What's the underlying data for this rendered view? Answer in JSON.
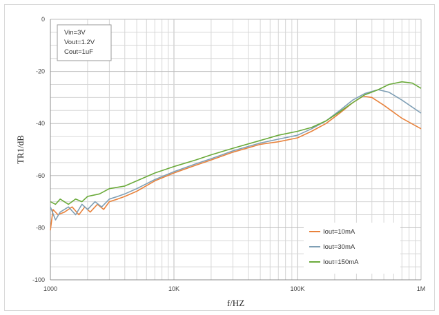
{
  "chart_data": {
    "type": "line",
    "title": "",
    "xlabel": "f/HZ",
    "ylabel": "TR1/dB",
    "xscale": "log",
    "xlim": [
      1000,
      1000000
    ],
    "ylim": [
      -100,
      0
    ],
    "x_tick_values": [
      1000,
      10000,
      100000,
      1000000
    ],
    "x_tick_labels": [
      "1000",
      "10K",
      "100K",
      "1M"
    ],
    "y_tick_values": [
      0,
      -20,
      -40,
      -60,
      -80,
      -100
    ],
    "y_tick_labels": [
      "0",
      "-20",
      "-40",
      "-60",
      "-80",
      "-100"
    ],
    "grid": true,
    "legend_position": "bottom-right",
    "annotation": [
      "Vin=3V",
      "Vout=1.2V",
      "Cout=1uF"
    ],
    "series": [
      {
        "name": "Iout=10mA",
        "color": "#e8823c",
        "points": [
          [
            1000,
            -81
          ],
          [
            1050,
            -73
          ],
          [
            1150,
            -75
          ],
          [
            1300,
            -74
          ],
          [
            1500,
            -72
          ],
          [
            1700,
            -75
          ],
          [
            1900,
            -72
          ],
          [
            2100,
            -74
          ],
          [
            2400,
            -71
          ],
          [
            2700,
            -73
          ],
          [
            3000,
            -70
          ],
          [
            3500,
            -69
          ],
          [
            4000,
            -68
          ],
          [
            5000,
            -66
          ],
          [
            7000,
            -62
          ],
          [
            10000,
            -59
          ],
          [
            15000,
            -56
          ],
          [
            20000,
            -54
          ],
          [
            30000,
            -51
          ],
          [
            50000,
            -48
          ],
          [
            70000,
            -47
          ],
          [
            100000,
            -45.5
          ],
          [
            130000,
            -43
          ],
          [
            170000,
            -40
          ],
          [
            220000,
            -36
          ],
          [
            280000,
            -32
          ],
          [
            340000,
            -29.5
          ],
          [
            400000,
            -30
          ],
          [
            500000,
            -33
          ],
          [
            700000,
            -38
          ],
          [
            1000000,
            -42
          ]
        ]
      },
      {
        "name": "Iout=30mA",
        "color": "#7f9fb5",
        "points": [
          [
            1000,
            -72
          ],
          [
            1100,
            -77
          ],
          [
            1200,
            -74
          ],
          [
            1400,
            -72
          ],
          [
            1600,
            -75
          ],
          [
            1800,
            -71
          ],
          [
            2000,
            -73
          ],
          [
            2300,
            -70
          ],
          [
            2600,
            -72
          ],
          [
            3000,
            -69
          ],
          [
            3500,
            -68
          ],
          [
            4000,
            -67
          ],
          [
            5000,
            -65
          ],
          [
            7000,
            -61.5
          ],
          [
            10000,
            -58.5
          ],
          [
            15000,
            -55.5
          ],
          [
            20000,
            -53.5
          ],
          [
            30000,
            -50.5
          ],
          [
            50000,
            -47.5
          ],
          [
            70000,
            -46
          ],
          [
            100000,
            -44.5
          ],
          [
            130000,
            -42
          ],
          [
            170000,
            -39
          ],
          [
            220000,
            -35
          ],
          [
            280000,
            -31
          ],
          [
            350000,
            -28.5
          ],
          [
            450000,
            -27
          ],
          [
            550000,
            -28
          ],
          [
            700000,
            -31
          ],
          [
            1000000,
            -36
          ]
        ]
      },
      {
        "name": "Iout=150mA",
        "color": "#6aaa3a",
        "points": [
          [
            1000,
            -70
          ],
          [
            1100,
            -71
          ],
          [
            1200,
            -69
          ],
          [
            1400,
            -71
          ],
          [
            1600,
            -69
          ],
          [
            1800,
            -70
          ],
          [
            2000,
            -68
          ],
          [
            2500,
            -67
          ],
          [
            3000,
            -65
          ],
          [
            4000,
            -64
          ],
          [
            5000,
            -62
          ],
          [
            7000,
            -59
          ],
          [
            10000,
            -56.5
          ],
          [
            15000,
            -54
          ],
          [
            20000,
            -52
          ],
          [
            30000,
            -49.5
          ],
          [
            50000,
            -46.5
          ],
          [
            70000,
            -44.5
          ],
          [
            100000,
            -43
          ],
          [
            130000,
            -41.5
          ],
          [
            170000,
            -39
          ],
          [
            220000,
            -35.5
          ],
          [
            280000,
            -32
          ],
          [
            350000,
            -29
          ],
          [
            450000,
            -27
          ],
          [
            550000,
            -25
          ],
          [
            700000,
            -24
          ],
          [
            850000,
            -24.5
          ],
          [
            1000000,
            -26.5
          ]
        ]
      }
    ]
  }
}
